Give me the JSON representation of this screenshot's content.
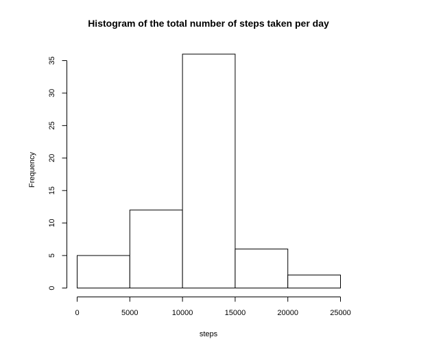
{
  "chart_data": {
    "type": "bar",
    "title": "Histogram of the total number of steps taken per day",
    "xlabel": "steps",
    "ylabel": "Frequency",
    "bins": [
      {
        "start": 0,
        "end": 5000,
        "value": 5
      },
      {
        "start": 5000,
        "end": 10000,
        "value": 12
      },
      {
        "start": 10000,
        "end": 15000,
        "value": 36
      },
      {
        "start": 15000,
        "end": 20000,
        "value": 6
      },
      {
        "start": 20000,
        "end": 25000,
        "value": 2
      }
    ],
    "xlim": [
      0,
      25000
    ],
    "ylim": [
      0,
      36
    ],
    "xticks": [
      0,
      5000,
      10000,
      15000,
      20000,
      25000
    ],
    "xtick_labels": [
      "0",
      "5000",
      "10000",
      "15000",
      "20000",
      "25000"
    ],
    "yticks": [
      0,
      5,
      10,
      15,
      20,
      25,
      30,
      35
    ],
    "ytick_labels": [
      "0",
      "5",
      "10",
      "15",
      "20",
      "25",
      "30",
      "35"
    ],
    "grid": false,
    "legend": "none"
  }
}
